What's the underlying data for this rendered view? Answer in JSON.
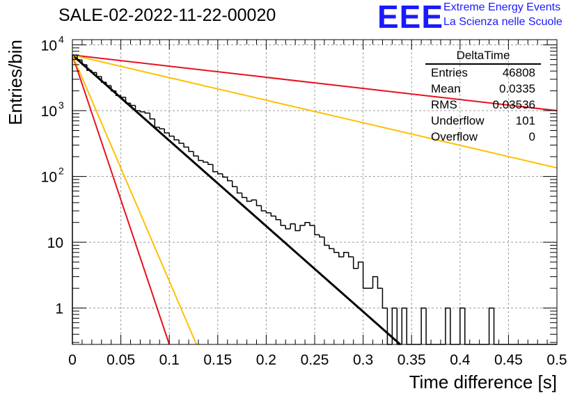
{
  "header": {
    "title": "SALE-02-2022-11-22-00020",
    "logo_letters": "EEE",
    "logo_line1": "Extreme Energy Events",
    "logo_line2": "La Scienza nelle Scuole"
  },
  "stats_box": {
    "title": "DeltaTime",
    "rows": [
      {
        "label": "Entries",
        "value": "46808"
      },
      {
        "label": "Mean",
        "value": "0.0335"
      },
      {
        "label": "RMS",
        "value": "0.03536"
      },
      {
        "label": "Underflow",
        "value": "101"
      },
      {
        "label": "Overflow",
        "value": "0"
      }
    ]
  },
  "chart_data": {
    "type": "histogram",
    "xlabel": "Time difference [s]",
    "ylabel": "Entries/bin",
    "xlim": [
      0,
      0.5
    ],
    "ylim": [
      0.28,
      12000
    ],
    "yscale": "log",
    "grid": true,
    "x_ticks": [
      "0",
      "0.05",
      "0.1",
      "0.15",
      "0.2",
      "0.25",
      "0.3",
      "0.35",
      "0.4",
      "0.45",
      "0.5"
    ],
    "y_ticks": [
      {
        "value": 1,
        "base": "1",
        "exp": ""
      },
      {
        "value": 10,
        "base": "10",
        "exp": ""
      },
      {
        "value": 100,
        "base": "10",
        "exp": "2"
      },
      {
        "value": 1000,
        "base": "10",
        "exp": "3"
      },
      {
        "value": 10000,
        "base": "10",
        "exp": "4"
      }
    ],
    "bin_width": 0.005,
    "bin_counts": [
      7000,
      5900,
      5000,
      4100,
      3800,
      3300,
      2700,
      2400,
      2000,
      1700,
      1600,
      1300,
      1200,
      1000,
      960,
      920,
      750,
      560,
      530,
      460,
      410,
      360,
      320,
      280,
      240,
      205,
      175,
      165,
      152,
      118,
      110,
      98,
      86,
      70,
      56,
      48,
      42,
      44,
      36,
      30,
      28,
      25,
      22,
      18,
      16,
      19,
      15,
      18,
      20,
      18,
      13,
      12,
      9,
      8,
      7,
      6,
      7,
      6,
      4,
      5,
      2,
      2,
      3,
      2,
      1,
      0,
      1,
      0,
      1,
      0,
      0,
      0,
      1,
      0,
      0,
      0,
      0,
      1,
      0,
      0,
      1,
      0,
      0,
      0,
      0,
      0,
      1,
      0,
      0,
      0,
      0,
      0,
      0,
      0,
      0,
      0,
      0,
      0,
      0,
      0
    ],
    "series": [
      {
        "color": "#000000",
        "width": 3,
        "points": [
          [
            0,
            7000
          ],
          [
            0.3383,
            0.28
          ]
        ]
      },
      {
        "color": "#e8101e",
        "width": 2,
        "points": [
          [
            0,
            7000
          ],
          [
            0.5,
            1000
          ]
        ]
      },
      {
        "color": "#e8101e",
        "width": 2,
        "points": [
          [
            0,
            7000
          ],
          [
            0.1,
            0.28
          ]
        ]
      },
      {
        "color": "#ffc000",
        "width": 2,
        "points": [
          [
            0,
            7000
          ],
          [
            0.5,
            135
          ]
        ]
      },
      {
        "color": "#ffc000",
        "width": 2,
        "points": [
          [
            0,
            7000
          ],
          [
            0.128,
            0.28
          ]
        ]
      }
    ]
  }
}
